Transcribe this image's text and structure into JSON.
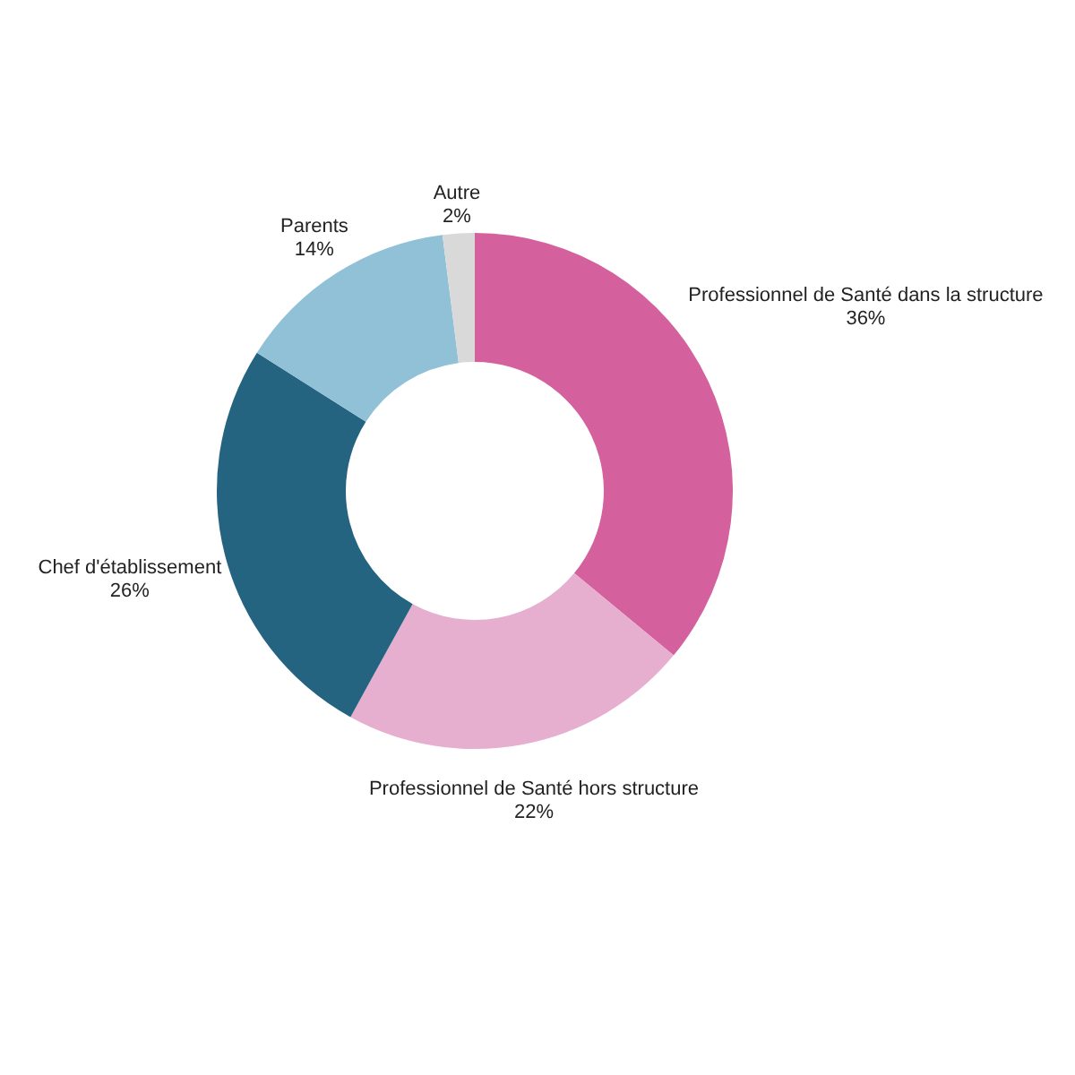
{
  "chart_data": {
    "type": "donut",
    "categories": [
      "Professionnel de Santé dans la structure",
      "Professionnel de Santé hors structure",
      "Chef d'établissement",
      "Parents",
      "Autre"
    ],
    "values": [
      36,
      22,
      26,
      14,
      2
    ],
    "colors": [
      "#d4609d",
      "#e6aecf",
      "#256480",
      "#91c1d7",
      "#d9d9d9"
    ],
    "value_labels": [
      "36%",
      "22%",
      "26%",
      "14%",
      "2%"
    ]
  }
}
